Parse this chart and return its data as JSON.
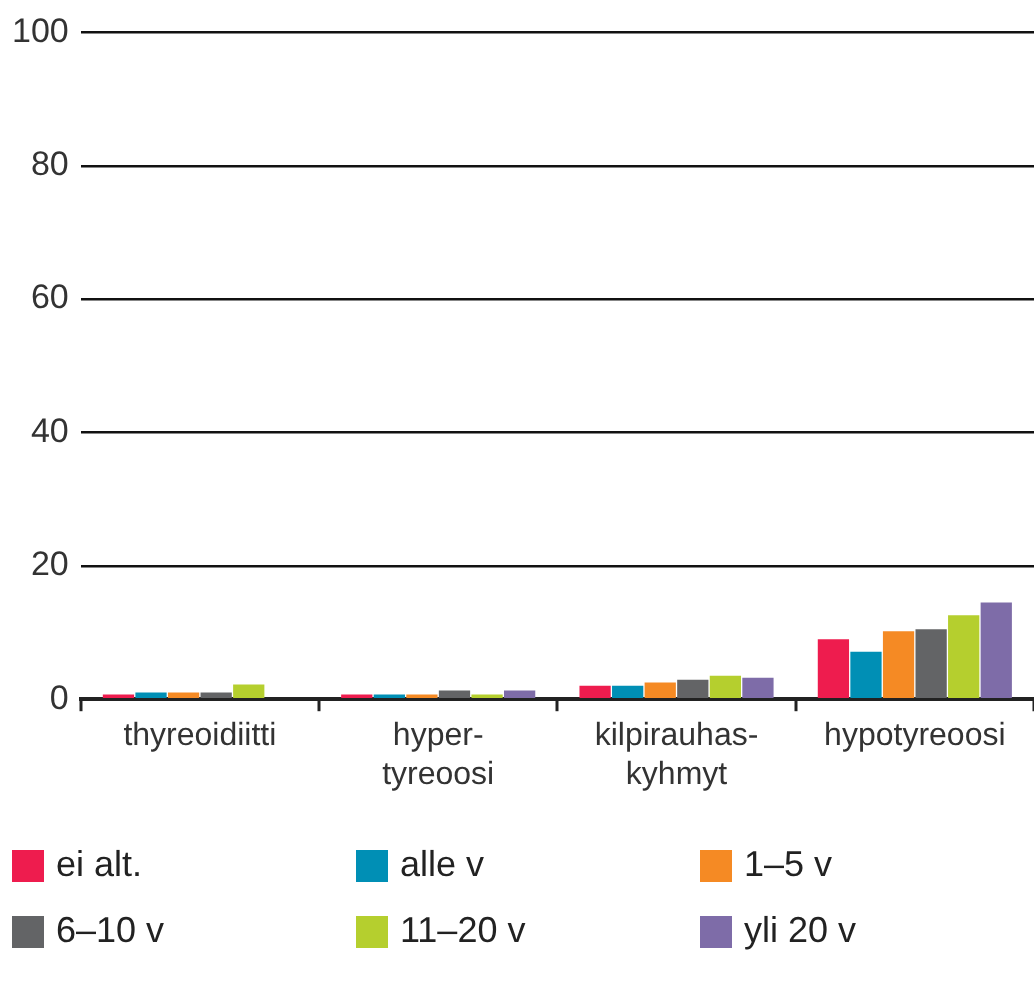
{
  "chart_data": {
    "type": "bar",
    "categories": [
      "thyreoidiitti",
      "hyper-\ntyreoosi",
      "kilpirauhas-\nkyhmyt",
      "hypotyreoosi"
    ],
    "series": [
      {
        "name": "ei alt.",
        "color": "#ee1c4e",
        "values": [
          0.7,
          0.7,
          2.0,
          9.0
        ]
      },
      {
        "name": "alle v",
        "color": "#008fb5",
        "values": [
          1.0,
          0.7,
          2.0,
          7.1
        ]
      },
      {
        "name": "1–5 v",
        "color": "#f58a24",
        "values": [
          1.0,
          0.7,
          2.5,
          10.2
        ]
      },
      {
        "name": "6–10 v",
        "color": "#636466",
        "values": [
          1.0,
          1.3,
          2.9,
          10.5
        ]
      },
      {
        "name": "11–20 v",
        "color": "#b5cf2e",
        "values": [
          2.2,
          0.7,
          3.5,
          12.6
        ]
      },
      {
        "name": "yli 20 v",
        "color": "#7e6ca8",
        "values": [
          0,
          1.3,
          3.2,
          14.5
        ]
      }
    ],
    "ylim": [
      0,
      100
    ],
    "yticks": [
      0,
      20,
      40,
      60,
      80,
      100
    ],
    "grid": "y",
    "legend": "bottom"
  }
}
